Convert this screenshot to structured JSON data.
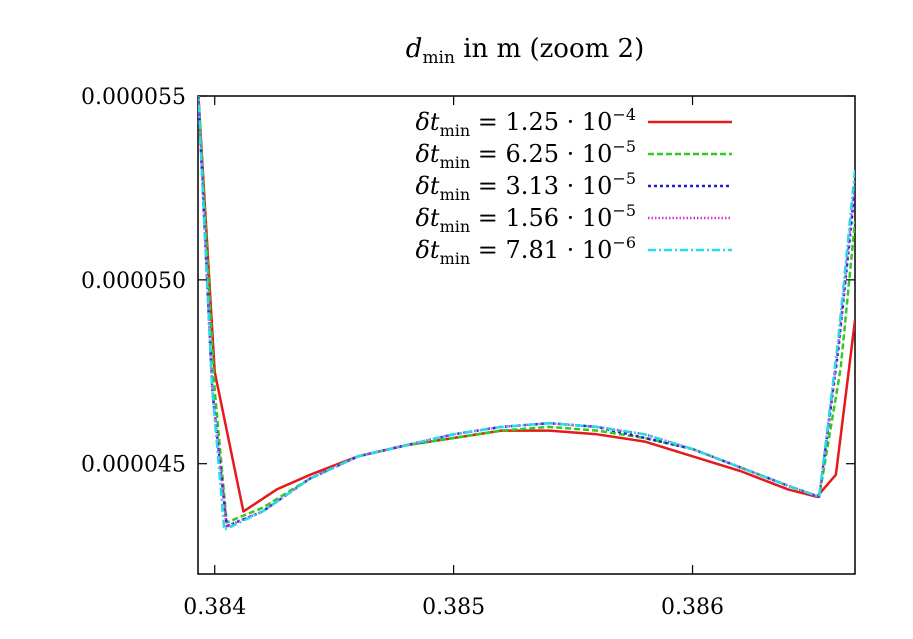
{
  "chart_data": {
    "type": "line",
    "title_main": "d",
    "title_sub": "min",
    "title_rest": " in m (zoom 2)",
    "xlim": [
      0.38393,
      0.38668
    ],
    "ylim": [
      4.2e-05,
      5.5e-05
    ],
    "xticks": [
      0.384,
      0.385,
      0.386
    ],
    "xtick_labels": [
      "0.384",
      "0.385",
      "0.386"
    ],
    "yticks": [
      4.5e-05,
      5e-05,
      5.5e-05
    ],
    "ytick_labels": [
      "0.000045",
      "0.000050",
      "0.000055"
    ],
    "grid": false,
    "legend_position": "top-right",
    "series": [
      {
        "name": "δt_min = 1.25 · 10^-4",
        "label_main": "δt",
        "label_sub": "min",
        "label_eq": " = 1.25 · 10",
        "label_exp": "−4",
        "color": "#e41a1c",
        "dash": "",
        "points": [
          [
            0.38393,
            5.52e-05
          ],
          [
            0.384,
            4.75e-05
          ],
          [
            0.38412,
            4.37e-05
          ],
          [
            0.38426,
            4.43e-05
          ],
          [
            0.3844,
            4.47e-05
          ],
          [
            0.3846,
            4.52e-05
          ],
          [
            0.3848,
            4.55e-05
          ],
          [
            0.385,
            4.57e-05
          ],
          [
            0.3852,
            4.59e-05
          ],
          [
            0.3854,
            4.59e-05
          ],
          [
            0.3856,
            4.58e-05
          ],
          [
            0.3858,
            4.56e-05
          ],
          [
            0.386,
            4.52e-05
          ],
          [
            0.3862,
            4.48e-05
          ],
          [
            0.3864,
            4.43e-05
          ],
          [
            0.38652,
            4.41e-05
          ],
          [
            0.3866,
            4.47e-05
          ],
          [
            0.38668,
            4.89e-05
          ]
        ]
      },
      {
        "name": "δt_min = 6.25 · 10^-5",
        "label_main": "δt",
        "label_sub": "min",
        "label_eq": " = 6.25 · 10",
        "label_exp": "−5",
        "color": "#2ecc1f",
        "dash": "6,3",
        "points": [
          [
            0.38393,
            5.52e-05
          ],
          [
            0.384,
            4.7e-05
          ],
          [
            0.38405,
            4.34e-05
          ],
          [
            0.3842,
            4.38e-05
          ],
          [
            0.3844,
            4.46e-05
          ],
          [
            0.3846,
            4.52e-05
          ],
          [
            0.3848,
            4.55e-05
          ],
          [
            0.385,
            4.57e-05
          ],
          [
            0.3852,
            4.59e-05
          ],
          [
            0.3854,
            4.6e-05
          ],
          [
            0.3856,
            4.59e-05
          ],
          [
            0.3858,
            4.57e-05
          ],
          [
            0.386,
            4.54e-05
          ],
          [
            0.3862,
            4.49e-05
          ],
          [
            0.3864,
            4.44e-05
          ],
          [
            0.38653,
            4.41e-05
          ],
          [
            0.38662,
            4.76e-05
          ],
          [
            0.38668,
            5.16e-05
          ]
        ]
      },
      {
        "name": "δt_min = 3.13 · 10^-5",
        "label_main": "δt",
        "label_sub": "min",
        "label_eq": " = 3.13 · 10",
        "label_exp": "−5",
        "color": "#1f1fd6",
        "dash": "3,3",
        "points": [
          [
            0.38393,
            5.52e-05
          ],
          [
            0.38399,
            4.7e-05
          ],
          [
            0.38405,
            4.33e-05
          ],
          [
            0.3842,
            4.37e-05
          ],
          [
            0.3844,
            4.46e-05
          ],
          [
            0.3846,
            4.52e-05
          ],
          [
            0.3848,
            4.55e-05
          ],
          [
            0.385,
            4.58e-05
          ],
          [
            0.3852,
            4.6e-05
          ],
          [
            0.3854,
            4.61e-05
          ],
          [
            0.3856,
            4.6e-05
          ],
          [
            0.3858,
            4.57e-05
          ],
          [
            0.386,
            4.54e-05
          ],
          [
            0.3862,
            4.49e-05
          ],
          [
            0.3864,
            4.44e-05
          ],
          [
            0.38653,
            4.41e-05
          ],
          [
            0.38661,
            4.81e-05
          ],
          [
            0.38668,
            5.25e-05
          ]
        ]
      },
      {
        "name": "δt_min = 1.56 · 10^-5",
        "label_main": "δt",
        "label_sub": "min",
        "label_eq": " = 1.56 · 10",
        "label_exp": "−5",
        "color": "#d633d6",
        "dash": "1.5,2",
        "points": [
          [
            0.38393,
            5.52e-05
          ],
          [
            0.38399,
            4.7e-05
          ],
          [
            0.38405,
            4.33e-05
          ],
          [
            0.3842,
            4.37e-05
          ],
          [
            0.3844,
            4.46e-05
          ],
          [
            0.3846,
            4.52e-05
          ],
          [
            0.3848,
            4.55e-05
          ],
          [
            0.385,
            4.58e-05
          ],
          [
            0.3852,
            4.6e-05
          ],
          [
            0.3854,
            4.61e-05
          ],
          [
            0.3856,
            4.6e-05
          ],
          [
            0.3858,
            4.58e-05
          ],
          [
            0.386,
            4.54e-05
          ],
          [
            0.3862,
            4.49e-05
          ],
          [
            0.3864,
            4.44e-05
          ],
          [
            0.38653,
            4.41e-05
          ],
          [
            0.38661,
            4.82e-05
          ],
          [
            0.38668,
            5.27e-05
          ]
        ]
      },
      {
        "name": "δt_min = 7.81 · 10^-6",
        "label_main": "δt",
        "label_sub": "min",
        "label_eq": " = 7.81 · 10",
        "label_exp": "−6",
        "color": "#22dde6",
        "dash": "8,3,2,3",
        "points": [
          [
            0.38393,
            5.52e-05
          ],
          [
            0.38399,
            4.7e-05
          ],
          [
            0.38404,
            4.32e-05
          ],
          [
            0.3842,
            4.37e-05
          ],
          [
            0.3844,
            4.46e-05
          ],
          [
            0.3846,
            4.52e-05
          ],
          [
            0.3848,
            4.55e-05
          ],
          [
            0.385,
            4.58e-05
          ],
          [
            0.3852,
            4.6e-05
          ],
          [
            0.3854,
            4.61e-05
          ],
          [
            0.3856,
            4.6e-05
          ],
          [
            0.3858,
            4.58e-05
          ],
          [
            0.386,
            4.54e-05
          ],
          [
            0.3862,
            4.49e-05
          ],
          [
            0.3864,
            4.44e-05
          ],
          [
            0.38653,
            4.41e-05
          ],
          [
            0.38661,
            4.84e-05
          ],
          [
            0.38668,
            5.3e-05
          ]
        ]
      }
    ]
  }
}
